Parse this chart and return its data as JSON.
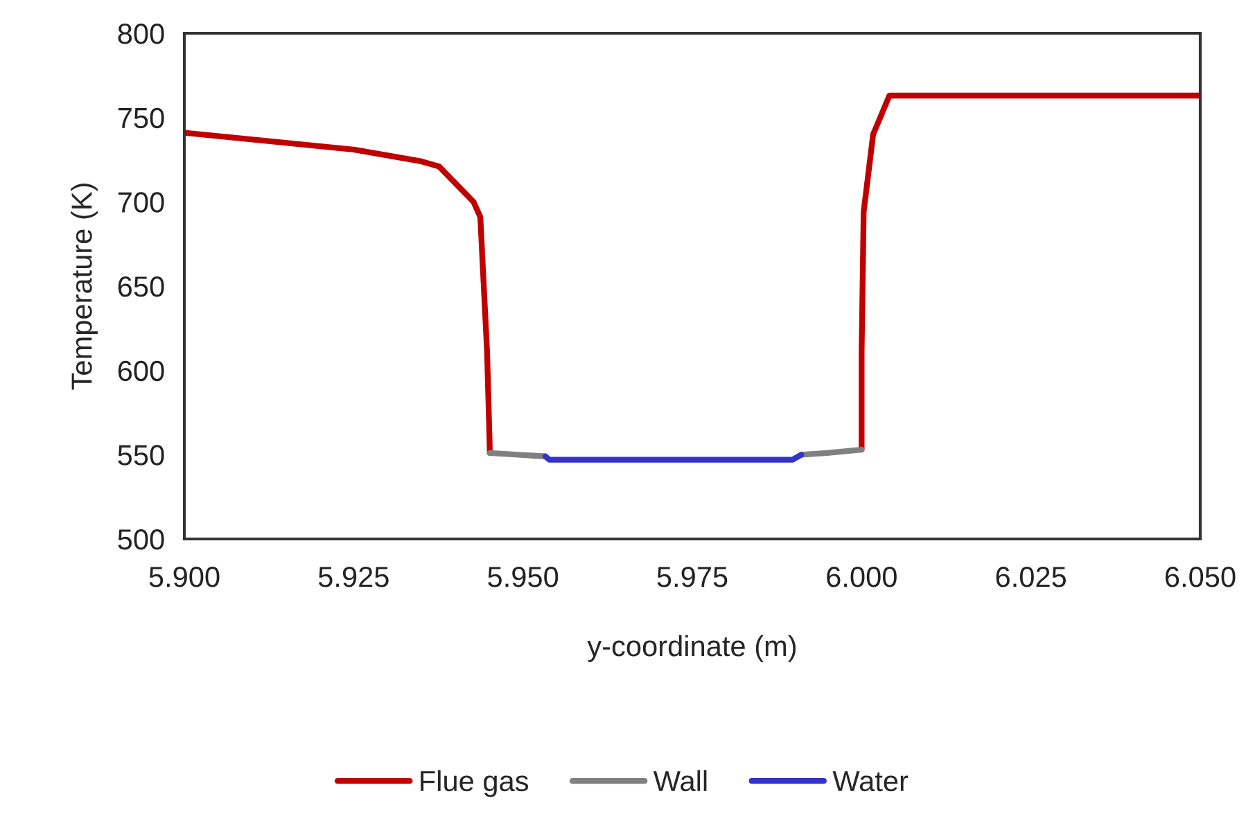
{
  "chart_data": {
    "type": "line",
    "xlabel": "y-coordinate (m)",
    "ylabel": "Temperature (K)",
    "xlim": [
      5.9,
      6.05
    ],
    "ylim": [
      500,
      800
    ],
    "xticks": [
      {
        "value": 5.9,
        "label": "5.900"
      },
      {
        "value": 5.925,
        "label": "5.925"
      },
      {
        "value": 5.95,
        "label": "5.950"
      },
      {
        "value": 5.975,
        "label": "5.975"
      },
      {
        "value": 6.0,
        "label": "6.000"
      },
      {
        "value": 6.025,
        "label": "6.025"
      },
      {
        "value": 6.05,
        "label": "6.050"
      }
    ],
    "yticks": [
      500,
      550,
      600,
      650,
      700,
      750,
      800
    ],
    "grid": false,
    "legend": "bottom",
    "marker": "none",
    "line_style": "solid",
    "series": [
      {
        "name": "Flue gas",
        "color": "#c00000",
        "x": [
          5.9,
          5.925,
          5.935,
          5.9376,
          5.9427,
          5.9437,
          5.9447,
          5.9451,
          5.9451,
          null,
          6.0,
          6.0,
          6.0003,
          6.0017,
          6.0041,
          6.05
        ],
        "values": [
          741,
          731,
          724,
          721,
          700,
          691,
          611,
          553,
          551,
          null,
          553,
          611,
          694,
          740,
          763,
          763
        ]
      },
      {
        "name": "Wall",
        "color": "#808080",
        "x": [
          5.9451,
          5.9533,
          null,
          5.9911,
          5.9949,
          6.0
        ],
        "values": [
          551,
          549,
          null,
          550,
          551,
          553
        ]
      },
      {
        "name": "Water",
        "color": "#3333cc",
        "x": [
          5.9533,
          5.9539,
          5.9898,
          5.9911
        ],
        "values": [
          549,
          547,
          547,
          550
        ]
      }
    ]
  }
}
